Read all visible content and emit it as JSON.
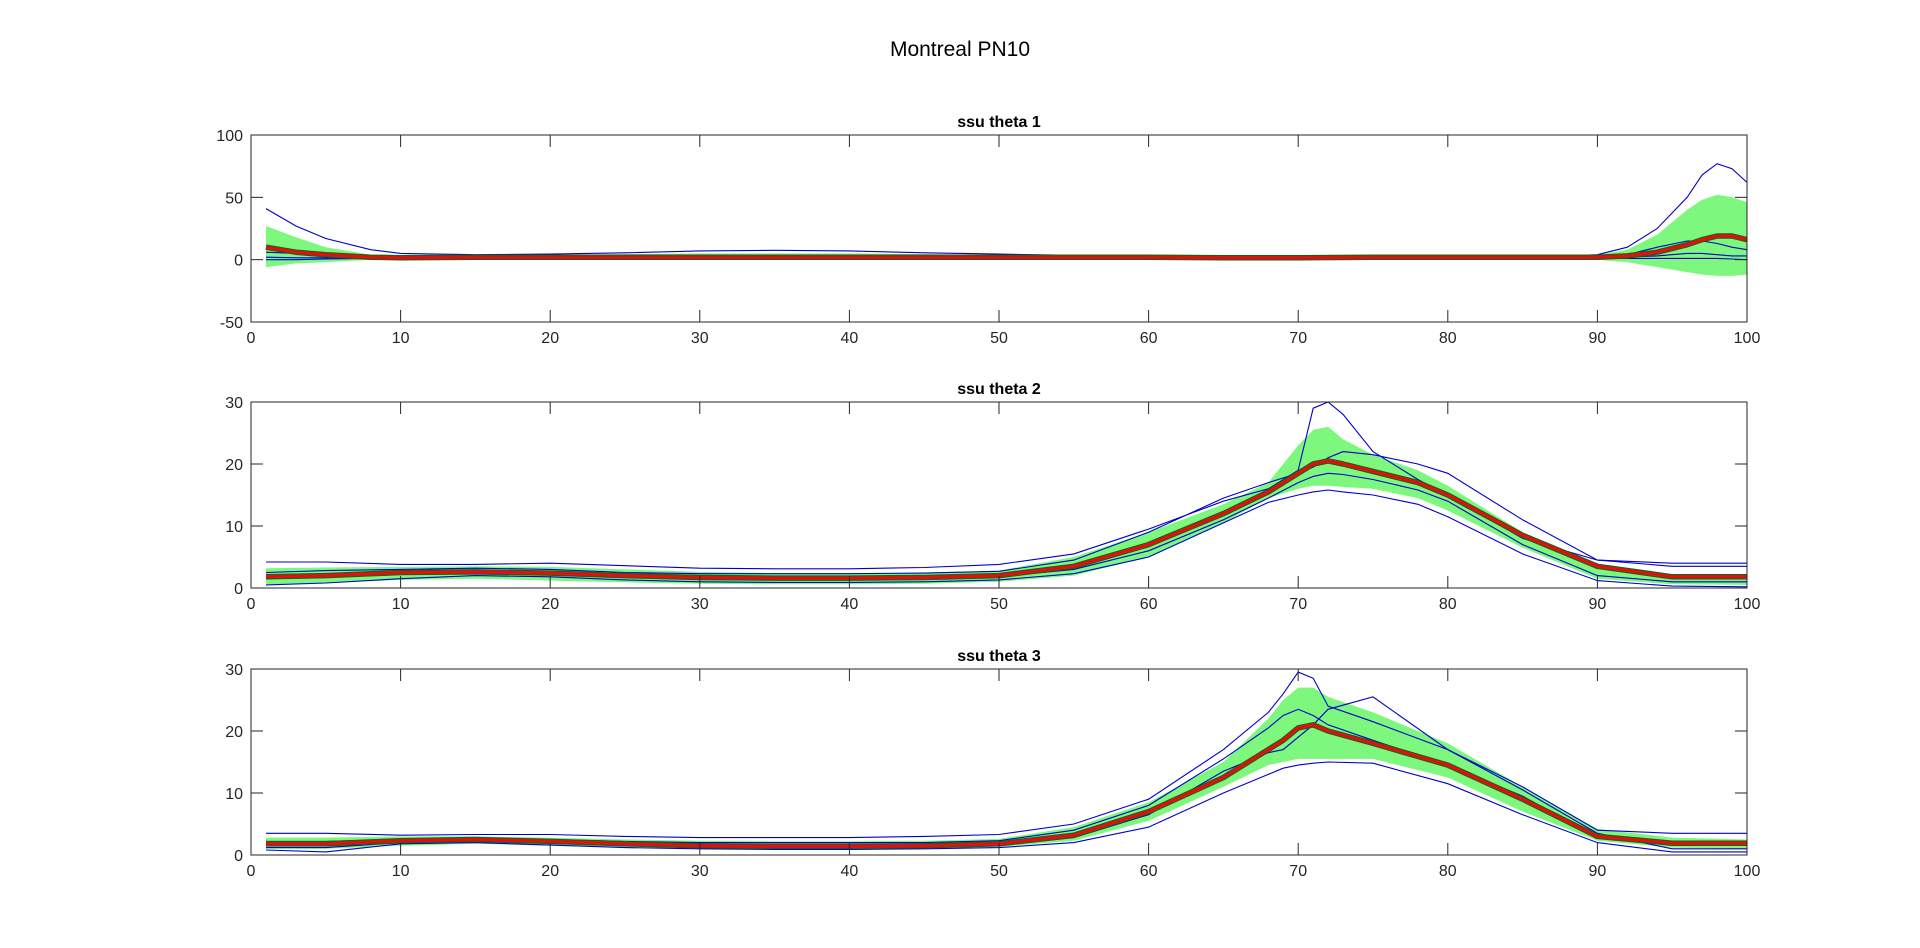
{
  "figure": {
    "title": "Montreal PN10"
  },
  "chart_data": [
    {
      "type": "line",
      "title": "ssu theta 1",
      "xlabel": "",
      "ylabel": "",
      "xlim": [
        0,
        100
      ],
      "ylim": [
        -50,
        100
      ],
      "xticks": [
        0,
        10,
        20,
        30,
        40,
        50,
        60,
        70,
        80,
        90,
        100
      ],
      "yticks": [
        -50,
        0,
        50,
        100
      ],
      "grid": false,
      "colors": {
        "band": "#7df77d",
        "individual": "#0000cc",
        "mean": "#dd1111",
        "mean_underlay": "#116611"
      },
      "x": [
        1,
        3,
        5,
        8,
        10,
        15,
        20,
        25,
        30,
        35,
        40,
        45,
        50,
        55,
        60,
        65,
        70,
        75,
        80,
        85,
        88,
        90,
        92,
        94,
        96,
        97,
        98,
        99,
        100
      ],
      "band": {
        "upper": [
          27,
          18,
          10,
          4,
          3,
          3.5,
          4,
          4.5,
          5,
          5,
          5,
          4.5,
          4,
          3.5,
          3,
          2.5,
          2.5,
          3,
          3,
          3,
          3,
          4,
          8,
          20,
          40,
          48,
          52,
          50,
          46
        ],
        "lower": [
          -6,
          -3,
          -2,
          0,
          0.5,
          0.5,
          0.5,
          0.5,
          0.5,
          0.5,
          0.5,
          0.5,
          0.5,
          0.5,
          0.5,
          0.5,
          0.5,
          0.5,
          0.5,
          0.5,
          0.5,
          0,
          -2,
          -6,
          -10,
          -12,
          -13,
          -13,
          -12
        ]
      },
      "mean": [
        10,
        6,
        4,
        2,
        1.5,
        2,
        2,
        2,
        2,
        2,
        2,
        2,
        2,
        2,
        2,
        1.5,
        1.5,
        2,
        2,
        2,
        2,
        2,
        3,
        6,
        12,
        16,
        19,
        19,
        16
      ],
      "series": [
        {
          "values": [
            41,
            27,
            17,
            8,
            5,
            4,
            4.5,
            5.5,
            7,
            7.5,
            7,
            5.5,
            4.5,
            3.5,
            3,
            2,
            2,
            2.5,
            2.5,
            2.5,
            3,
            4,
            10,
            25,
            50,
            68,
            77,
            73,
            62
          ]
        },
        {
          "values": [
            6,
            5,
            4,
            3,
            2.5,
            2.5,
            2.5,
            2.5,
            2.5,
            2.5,
            2.5,
            2.5,
            2.5,
            2.5,
            2,
            2,
            2,
            2,
            2,
            2,
            2,
            2,
            4,
            10,
            15,
            15,
            13,
            10,
            8
          ]
        },
        {
          "values": [
            2,
            1.5,
            1.5,
            1.5,
            1.5,
            1.5,
            1.5,
            1.5,
            1.5,
            1.5,
            1.5,
            1.5,
            1.5,
            1.5,
            1.5,
            1.5,
            1.5,
            1.5,
            1.5,
            1.5,
            1.5,
            1.5,
            2,
            3,
            5,
            5,
            4,
            3,
            3
          ]
        },
        {
          "values": [
            0,
            0,
            0.5,
            1,
            1,
            1,
            1,
            1,
            1,
            1,
            1,
            1,
            1,
            1,
            1,
            1,
            1,
            1,
            1,
            1,
            1,
            1,
            1,
            1,
            1,
            1,
            1,
            0.5,
            0
          ]
        }
      ]
    },
    {
      "type": "line",
      "title": "ssu theta 2",
      "xlabel": "",
      "ylabel": "",
      "xlim": [
        0,
        100
      ],
      "ylim": [
        0,
        30
      ],
      "xticks": [
        0,
        10,
        20,
        30,
        40,
        50,
        60,
        70,
        80,
        90,
        100
      ],
      "yticks": [
        0,
        10,
        20,
        30
      ],
      "grid": false,
      "colors": {
        "band": "#7df77d",
        "individual": "#0000cc",
        "mean": "#dd1111",
        "mean_underlay": "#116611"
      },
      "x": [
        1,
        5,
        10,
        15,
        20,
        25,
        30,
        35,
        40,
        45,
        50,
        55,
        60,
        65,
        68,
        70,
        71,
        72,
        73,
        75,
        78,
        80,
        85,
        90,
        95,
        100
      ],
      "band": {
        "upper": [
          3.2,
          3.3,
          3.4,
          3.5,
          3.4,
          3.0,
          2.6,
          2.4,
          2.4,
          2.5,
          2.8,
          5.0,
          9.0,
          13.5,
          17,
          23,
          25.5,
          26,
          24,
          21.5,
          19,
          16.5,
          9,
          3.5,
          2.2,
          2.0
        ],
        "lower": [
          0.6,
          0.8,
          1.3,
          1.5,
          1.2,
          0.9,
          0.7,
          0.6,
          0.6,
          0.7,
          1.0,
          2.0,
          5.0,
          10.5,
          14.5,
          16,
          16.5,
          16.5,
          16.3,
          16,
          14.5,
          12.5,
          6.5,
          1.5,
          0.6,
          0.5
        ]
      },
      "mean": [
        1.8,
        2.0,
        2.5,
        2.6,
        2.4,
        2.0,
        1.7,
        1.6,
        1.6,
        1.7,
        2.0,
        3.5,
        7.0,
        12.0,
        15.5,
        18.5,
        20,
        20.5,
        20,
        18.8,
        17,
        15.0,
        8.5,
        3.5,
        1.8,
        1.8
      ],
      "series": [
        {
          "values": [
            4.2,
            4.2,
            3.8,
            3.8,
            4.0,
            3.6,
            3.2,
            3.1,
            3.1,
            3.3,
            3.8,
            5.5,
            9.5,
            14,
            16,
            19,
            29,
            30,
            28,
            22,
            17.5,
            15,
            8,
            4.5,
            4.0,
            4.0
          ]
        },
        {
          "values": [
            2.5,
            2.8,
            3.0,
            3.2,
            3.0,
            2.5,
            2.3,
            2.3,
            2.3,
            2.4,
            2.7,
            4.5,
            9.0,
            14.5,
            17,
            18.5,
            19.5,
            21,
            22,
            21.5,
            20,
            18.5,
            11,
            4.5,
            3.5,
            3.5
          ]
        },
        {
          "values": [
            1.5,
            1.7,
            2.5,
            2.7,
            2.5,
            2.0,
            1.6,
            1.4,
            1.4,
            1.5,
            1.8,
            3.0,
            6.0,
            11,
            14.5,
            17,
            18,
            18.5,
            18.3,
            17.5,
            15.8,
            14.0,
            7.0,
            2.0,
            1.0,
            1.0
          ]
        },
        {
          "values": [
            0.5,
            0.8,
            1.5,
            2.0,
            1.8,
            1.3,
            1.0,
            0.9,
            0.9,
            1.0,
            1.3,
            2.3,
            5.0,
            10.5,
            13.8,
            15,
            15.5,
            15.8,
            15.5,
            15.0,
            13.5,
            11.5,
            5.5,
            1.2,
            0.3,
            0.2
          ]
        }
      ]
    },
    {
      "type": "line",
      "title": "ssu theta 3",
      "xlabel": "",
      "ylabel": "",
      "xlim": [
        0,
        100
      ],
      "ylim": [
        0,
        30
      ],
      "xticks": [
        0,
        10,
        20,
        30,
        40,
        50,
        60,
        70,
        80,
        90,
        100
      ],
      "yticks": [
        0,
        10,
        20,
        30
      ],
      "grid": false,
      "colors": {
        "band": "#7df77d",
        "individual": "#0000cc",
        "mean": "#dd1111",
        "mean_underlay": "#116611"
      },
      "x": [
        1,
        5,
        10,
        15,
        20,
        25,
        30,
        35,
        40,
        45,
        50,
        55,
        60,
        65,
        68,
        69,
        70,
        71,
        72,
        75,
        80,
        85,
        90,
        95,
        100
      ],
      "band": {
        "upper": [
          2.8,
          2.8,
          3.0,
          3.0,
          2.8,
          2.5,
          2.3,
          2.2,
          2.2,
          2.3,
          2.6,
          4.5,
          8.5,
          15,
          22,
          25,
          27,
          27,
          25.5,
          23,
          18,
          11,
          4.2,
          2.8,
          2.5
        ],
        "lower": [
          1.0,
          1.0,
          1.5,
          1.8,
          1.5,
          1.2,
          1.0,
          1.0,
          1.0,
          1.1,
          1.3,
          2.3,
          5.5,
          11,
          14.5,
          15,
          15.5,
          15.5,
          15.5,
          15.5,
          12.5,
          7.0,
          2.3,
          1.2,
          1.0
        ],
        "note": ""
      },
      "mean": [
        1.8,
        1.8,
        2.3,
        2.5,
        2.2,
        1.8,
        1.5,
        1.4,
        1.4,
        1.5,
        1.8,
        3.2,
        7.0,
        12.5,
        17,
        18.5,
        20.5,
        21,
        20,
        18,
        14.5,
        9.0,
        3.0,
        1.9,
        1.9
      ],
      "series": [
        {
          "values": [
            3.5,
            3.5,
            3.2,
            3.3,
            3.3,
            3.0,
            2.8,
            2.8,
            2.8,
            3.0,
            3.3,
            5.0,
            9.0,
            17,
            23,
            26,
            29.5,
            28.5,
            24,
            21.5,
            17,
            11,
            4.0,
            3.5,
            3.5
          ]
        },
        {
          "values": [
            2.2,
            2.2,
            2.5,
            2.7,
            2.5,
            2.2,
            2.0,
            2.0,
            2.0,
            2.0,
            2.3,
            4.0,
            8.0,
            15.5,
            20.5,
            22.5,
            23.5,
            22.5,
            21,
            18.5,
            14.5,
            9.5,
            2.8,
            2.0,
            2.0
          ]
        },
        {
          "values": [
            1.2,
            1.2,
            2.0,
            2.2,
            2.0,
            1.5,
            1.2,
            1.1,
            1.1,
            1.2,
            1.5,
            2.8,
            6.5,
            13.5,
            16.5,
            17,
            19,
            21,
            23.5,
            25.5,
            17,
            10.5,
            3.5,
            1.0,
            1.0
          ]
        },
        {
          "values": [
            0.8,
            0.5,
            1.8,
            2.0,
            1.6,
            1.2,
            1.0,
            0.9,
            0.9,
            1.0,
            1.2,
            2.0,
            4.5,
            10.0,
            13.0,
            14.0,
            14.5,
            14.8,
            15.0,
            14.8,
            11.5,
            6.5,
            2.0,
            0.5,
            0.5
          ]
        }
      ]
    }
  ]
}
